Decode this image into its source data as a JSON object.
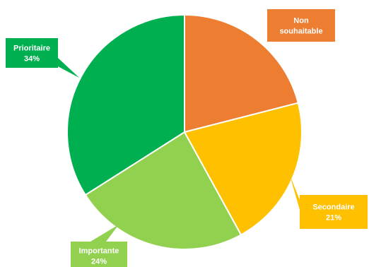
{
  "chart_data": {
    "type": "pie",
    "title": "",
    "start_angle": "12 o'clock",
    "direction": "clockwise",
    "slices": [
      {
        "name": "Non souhaitable",
        "name_lines": [
          "Non",
          "souhaitable"
        ],
        "value": 21,
        "percent_label": "",
        "color": "#ED7D31"
      },
      {
        "name": "Secondaire",
        "name_lines": [
          "Secondaire"
        ],
        "value": 21,
        "percent_label": "21%",
        "color": "#FFC000"
      },
      {
        "name": "Importante",
        "name_lines": [
          "Importante"
        ],
        "value": 24,
        "percent_label": "24%",
        "color": "#92D050"
      },
      {
        "name": "Prioritaire",
        "name_lines": [
          "Prioritaire"
        ],
        "value": 34,
        "percent_label": "34%",
        "color": "#00B050"
      }
    ]
  }
}
